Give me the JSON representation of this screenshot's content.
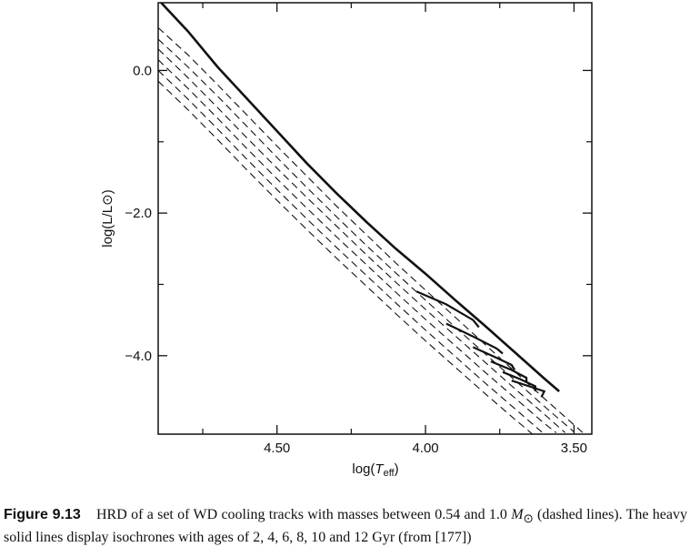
{
  "chart_data": {
    "type": "line",
    "xlabel": {
      "prefix": "log(",
      "var": "T",
      "sub": "eff",
      "suffix": ")"
    },
    "ylabel": "log(L/L⊙)",
    "xlim": [
      4.9,
      3.44
    ],
    "ylim": [
      -5.1,
      0.95
    ],
    "x_inverted": true,
    "x_ticks": [
      4.5,
      4.0,
      3.5
    ],
    "x_tick_labels": [
      "4.50",
      "4.00",
      "3.50"
    ],
    "x_minor_ticks": [
      4.75,
      4.25,
      3.75
    ],
    "y_ticks": [
      0.0,
      -2.0,
      -4.0
    ],
    "y_tick_labels": [
      "0.0",
      "−2.0",
      "−4.0"
    ],
    "y_minor_ticks": [
      -1.0,
      -3.0
    ],
    "series": [
      {
        "style": "solid-heavy",
        "points": [
          [
            4.89,
            0.95
          ],
          [
            4.8,
            0.55
          ],
          [
            4.7,
            0.05
          ],
          [
            4.6,
            -0.4
          ],
          [
            4.5,
            -0.85
          ],
          [
            4.4,
            -1.3
          ],
          [
            4.3,
            -1.72
          ],
          [
            4.2,
            -2.12
          ],
          [
            4.1,
            -2.5
          ],
          [
            4.0,
            -2.85
          ],
          [
            3.9,
            -3.22
          ],
          [
            3.8,
            -3.58
          ],
          [
            3.7,
            -3.95
          ],
          [
            3.6,
            -4.32
          ],
          [
            3.55,
            -4.5
          ]
        ]
      },
      {
        "style": "dashed",
        "points": [
          [
            4.9,
            0.6
          ],
          [
            4.8,
            0.22
          ],
          [
            4.7,
            -0.2
          ],
          [
            4.6,
            -0.63
          ],
          [
            4.5,
            -1.06
          ],
          [
            4.4,
            -1.48
          ],
          [
            4.3,
            -1.9
          ],
          [
            4.2,
            -2.3
          ],
          [
            4.1,
            -2.7
          ],
          [
            4.0,
            -3.08
          ],
          [
            3.9,
            -3.46
          ],
          [
            3.8,
            -3.84
          ],
          [
            3.7,
            -4.22
          ],
          [
            3.6,
            -4.6
          ],
          [
            3.5,
            -4.97
          ],
          [
            3.47,
            -5.08
          ]
        ]
      },
      {
        "style": "dashed",
        "points": [
          [
            4.9,
            0.44
          ],
          [
            4.8,
            0.05
          ],
          [
            4.7,
            -0.36
          ],
          [
            4.6,
            -0.79
          ],
          [
            4.5,
            -1.22
          ],
          [
            4.4,
            -1.64
          ],
          [
            4.3,
            -2.05
          ],
          [
            4.2,
            -2.45
          ],
          [
            4.1,
            -2.84
          ],
          [
            4.0,
            -3.22
          ],
          [
            3.9,
            -3.6
          ],
          [
            3.8,
            -3.97
          ],
          [
            3.7,
            -4.34
          ],
          [
            3.6,
            -4.71
          ],
          [
            3.5,
            -5.07
          ]
        ]
      },
      {
        "style": "dashed",
        "points": [
          [
            4.9,
            0.3
          ],
          [
            4.8,
            -0.1
          ],
          [
            4.7,
            -0.52
          ],
          [
            4.6,
            -0.95
          ],
          [
            4.5,
            -1.37
          ],
          [
            4.4,
            -1.78
          ],
          [
            4.3,
            -2.18
          ],
          [
            4.2,
            -2.58
          ],
          [
            4.1,
            -2.97
          ],
          [
            4.0,
            -3.35
          ],
          [
            3.9,
            -3.72
          ],
          [
            3.8,
            -4.09
          ],
          [
            3.7,
            -4.46
          ],
          [
            3.6,
            -4.82
          ],
          [
            3.53,
            -5.08
          ]
        ]
      },
      {
        "style": "dashed",
        "points": [
          [
            4.9,
            0.15
          ],
          [
            4.8,
            -0.25
          ],
          [
            4.7,
            -0.67
          ],
          [
            4.6,
            -1.1
          ],
          [
            4.5,
            -1.52
          ],
          [
            4.4,
            -1.93
          ],
          [
            4.3,
            -2.33
          ],
          [
            4.2,
            -2.72
          ],
          [
            4.1,
            -3.11
          ],
          [
            4.0,
            -3.49
          ],
          [
            3.9,
            -3.86
          ],
          [
            3.8,
            -4.23
          ],
          [
            3.7,
            -4.59
          ],
          [
            3.6,
            -4.95
          ],
          [
            3.56,
            -5.08
          ]
        ]
      },
      {
        "style": "dashed",
        "points": [
          [
            4.9,
            0.0
          ],
          [
            4.8,
            -0.4
          ],
          [
            4.7,
            -0.82
          ],
          [
            4.6,
            -1.25
          ],
          [
            4.5,
            -1.67
          ],
          [
            4.4,
            -2.08
          ],
          [
            4.3,
            -2.48
          ],
          [
            4.2,
            -2.87
          ],
          [
            4.1,
            -3.26
          ],
          [
            4.0,
            -3.64
          ],
          [
            3.9,
            -4.01
          ],
          [
            3.8,
            -4.38
          ],
          [
            3.7,
            -4.74
          ],
          [
            3.6,
            -5.1
          ]
        ]
      },
      {
        "style": "dashed",
        "points": [
          [
            4.9,
            -0.15
          ],
          [
            4.8,
            -0.55
          ],
          [
            4.7,
            -0.97
          ],
          [
            4.6,
            -1.4
          ],
          [
            4.5,
            -1.82
          ],
          [
            4.4,
            -2.23
          ],
          [
            4.3,
            -2.63
          ],
          [
            4.2,
            -3.02
          ],
          [
            4.1,
            -3.41
          ],
          [
            4.0,
            -3.79
          ],
          [
            3.9,
            -4.16
          ],
          [
            3.8,
            -4.53
          ],
          [
            3.7,
            -4.89
          ],
          [
            3.64,
            -5.1
          ]
        ]
      },
      {
        "style": "solid",
        "points": [
          [
            4.03,
            -3.1
          ],
          [
            3.93,
            -3.28
          ],
          [
            3.84,
            -3.5
          ],
          [
            3.82,
            -3.6
          ]
        ]
      },
      {
        "style": "solid",
        "points": [
          [
            3.93,
            -3.55
          ],
          [
            3.84,
            -3.73
          ],
          [
            3.76,
            -3.9
          ],
          [
            3.74,
            -3.97
          ]
        ]
      },
      {
        "style": "solid",
        "points": [
          [
            3.84,
            -3.88
          ],
          [
            3.76,
            -4.03
          ],
          [
            3.71,
            -4.13
          ],
          [
            3.7,
            -4.2
          ]
        ]
      },
      {
        "style": "solid",
        "points": [
          [
            3.78,
            -4.08
          ],
          [
            3.71,
            -4.2
          ],
          [
            3.66,
            -4.31
          ],
          [
            3.66,
            -4.38
          ]
        ]
      },
      {
        "style": "solid",
        "points": [
          [
            3.74,
            -4.23
          ],
          [
            3.68,
            -4.33
          ],
          [
            3.63,
            -4.43
          ],
          [
            3.63,
            -4.5
          ]
        ]
      },
      {
        "style": "solid",
        "points": [
          [
            3.71,
            -4.35
          ],
          [
            3.65,
            -4.43
          ],
          [
            3.6,
            -4.5
          ],
          [
            3.61,
            -4.58
          ]
        ]
      }
    ],
    "caption": {
      "label": "Figure 9.13",
      "text_1": "HRD of a set of WD cooling tracks with masses between 0.54 and 1.0 ",
      "msun": "M",
      "msun_sub": "⊙",
      "text_2": " (dashed lines). The heavy solid lines display isochrones with ages of 2, 4, 6, 8, 10 and 12 Gyr (from [177])"
    }
  }
}
